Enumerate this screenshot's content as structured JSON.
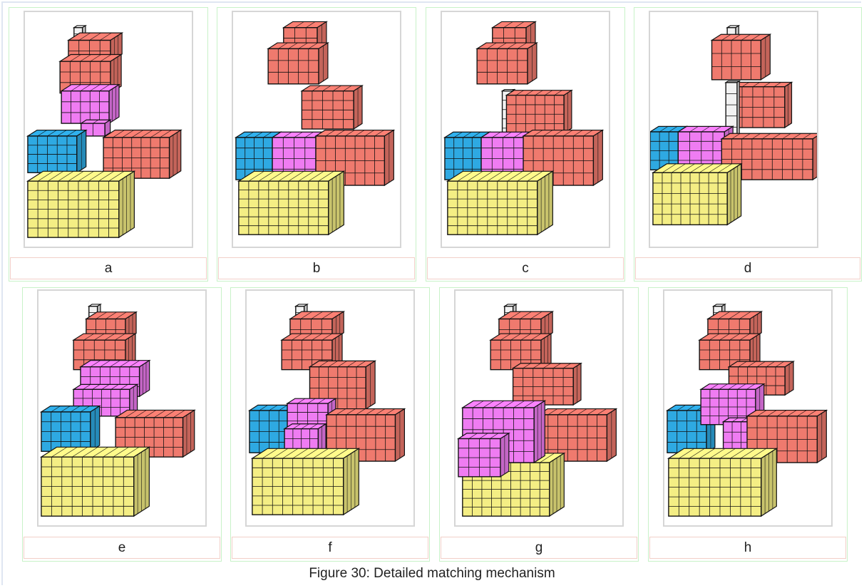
{
  "figure": {
    "caption": "Figure 30: Detailed matching mechanism",
    "panels": [
      {
        "label": "a"
      },
      {
        "label": "b"
      },
      {
        "label": "c"
      },
      {
        "label": "d"
      },
      {
        "label": "e"
      },
      {
        "label": "f"
      },
      {
        "label": "g"
      },
      {
        "label": "h"
      }
    ]
  },
  "colors": {
    "red_block": "#ef7a6e",
    "magenta_block": "#ef7cf2",
    "blue_block": "#2ea9e2",
    "yellow_block": "#f4ee84",
    "gray_block": "#f2f2f2",
    "outline": "#111111"
  }
}
